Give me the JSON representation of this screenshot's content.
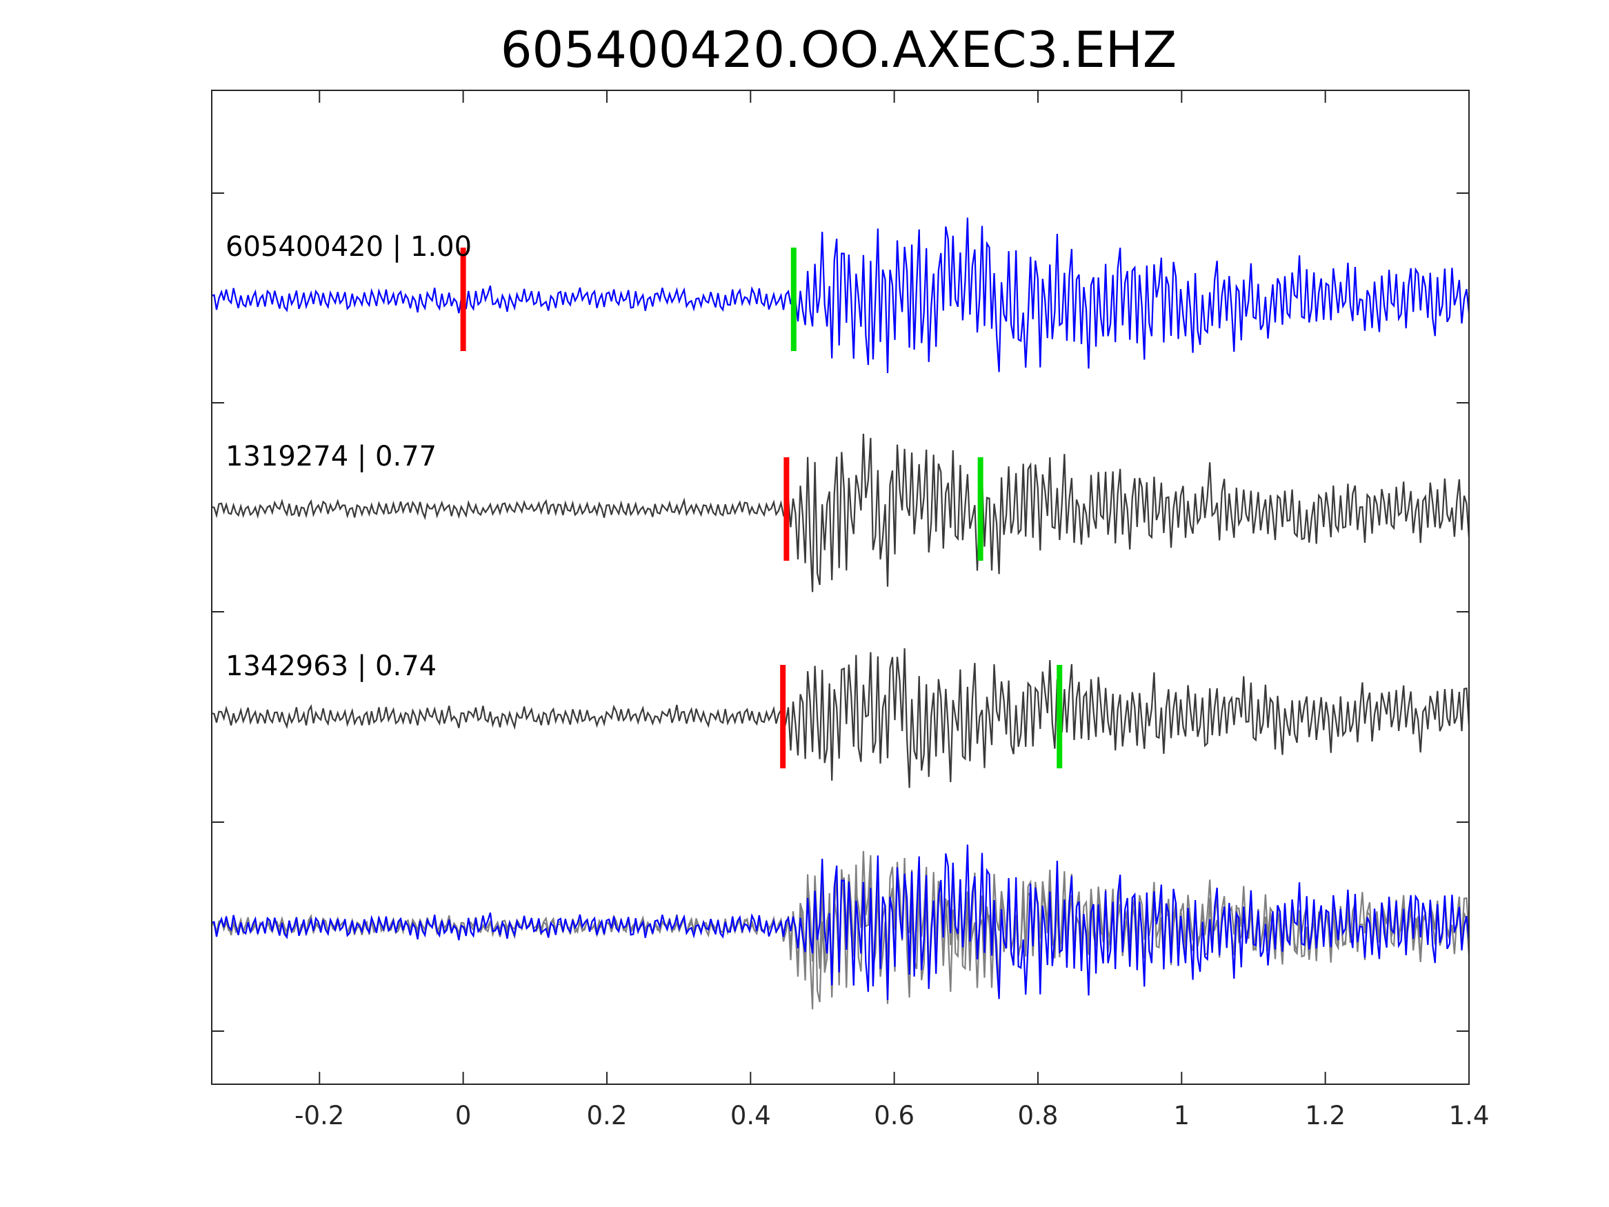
{
  "chart_data": {
    "type": "line",
    "title": "605400420.OO.AXEC3.EHZ",
    "xlim": [
      -0.35,
      1.4
    ],
    "x_ticks": [
      "-0.2",
      "0",
      "0.2",
      "0.4",
      "0.6",
      "0.8",
      "1",
      "1.2",
      "1.4"
    ],
    "x_tick_values": [
      -0.2,
      0,
      0.2,
      0.4,
      0.6,
      0.8,
      1.0,
      1.2,
      1.4
    ],
    "grid": false,
    "legend": "none",
    "colors": {
      "master": "#0000ff",
      "match": "#3a3a3a",
      "overlay_match": "#808080",
      "p_pick": "#ff0000",
      "s_pick": "#00dd00",
      "axes": "#262626"
    },
    "series": [
      {
        "label": "605400420 | 1.00",
        "color": "#0000ff",
        "p_pick": 0.0,
        "s_pick": 0.46,
        "noise_amp": 0.14,
        "signal_start": 0.455,
        "peak_amp": 0.95,
        "peak_time": 0.66,
        "seed": 7
      },
      {
        "label": "1319274 | 0.77",
        "color": "#3a3a3a",
        "p_pick": 0.45,
        "s_pick": 0.72,
        "noise_amp": 0.1,
        "signal_start": 0.445,
        "peak_amp": 0.95,
        "peak_time": 0.5,
        "seed": 13
      },
      {
        "label": "1342963 | 0.74",
        "color": "#3a3a3a",
        "p_pick": 0.445,
        "s_pick": 0.83,
        "noise_amp": 0.12,
        "signal_start": 0.44,
        "peak_amp": 0.9,
        "peak_time": 0.5,
        "seed": 29
      }
    ],
    "overlay": {
      "description_series": [
        "605400420 | 1.00",
        "1319274 | 0.77",
        "1342963 | 0.74"
      ]
    }
  }
}
